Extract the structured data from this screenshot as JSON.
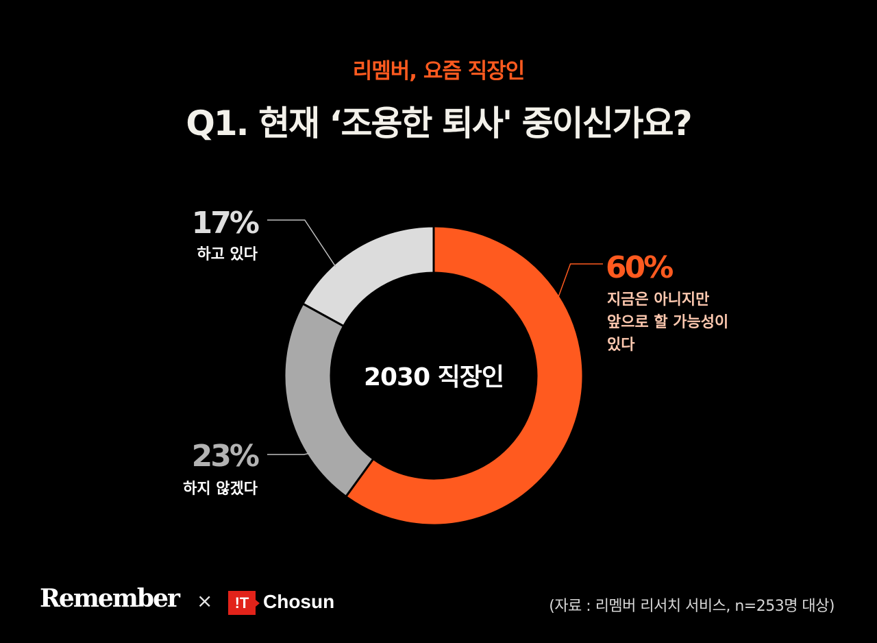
{
  "header": {
    "subtitle": "리멤버, 요즘 직장인",
    "title": "Q1. 현재 ‘조용한 퇴사' 중이신가요?"
  },
  "chart_data": {
    "type": "pie",
    "style": "donut",
    "center_label": "2030 직장인",
    "slices": [
      {
        "value": 60,
        "pct_label": "60%",
        "lines": [
          "지금은 아니지만",
          "앞으로 할 가능성이",
          "있다"
        ],
        "color": "#ff5a1f",
        "pct_color": "#ff5a1f",
        "text_color": "#ffc9b0"
      },
      {
        "value": 23,
        "pct_label": "23%",
        "lines": [
          "하지 않겠다"
        ],
        "color": "#a9a9a9",
        "pct_color": "#b3b3b3",
        "text_color": "#ffffff"
      },
      {
        "value": 17,
        "pct_label": "17%",
        "lines": [
          "하고 있다"
        ],
        "color": "#dcdcdc",
        "pct_color": "#dedede",
        "text_color": "#ffffff"
      }
    ]
  },
  "footer": {
    "logo": "Remember",
    "cross": "×",
    "it_badge": "!T",
    "partner": "Chosun",
    "source": "(자료 : 리멤버 리서치 서비스, n=253명 대상)"
  }
}
